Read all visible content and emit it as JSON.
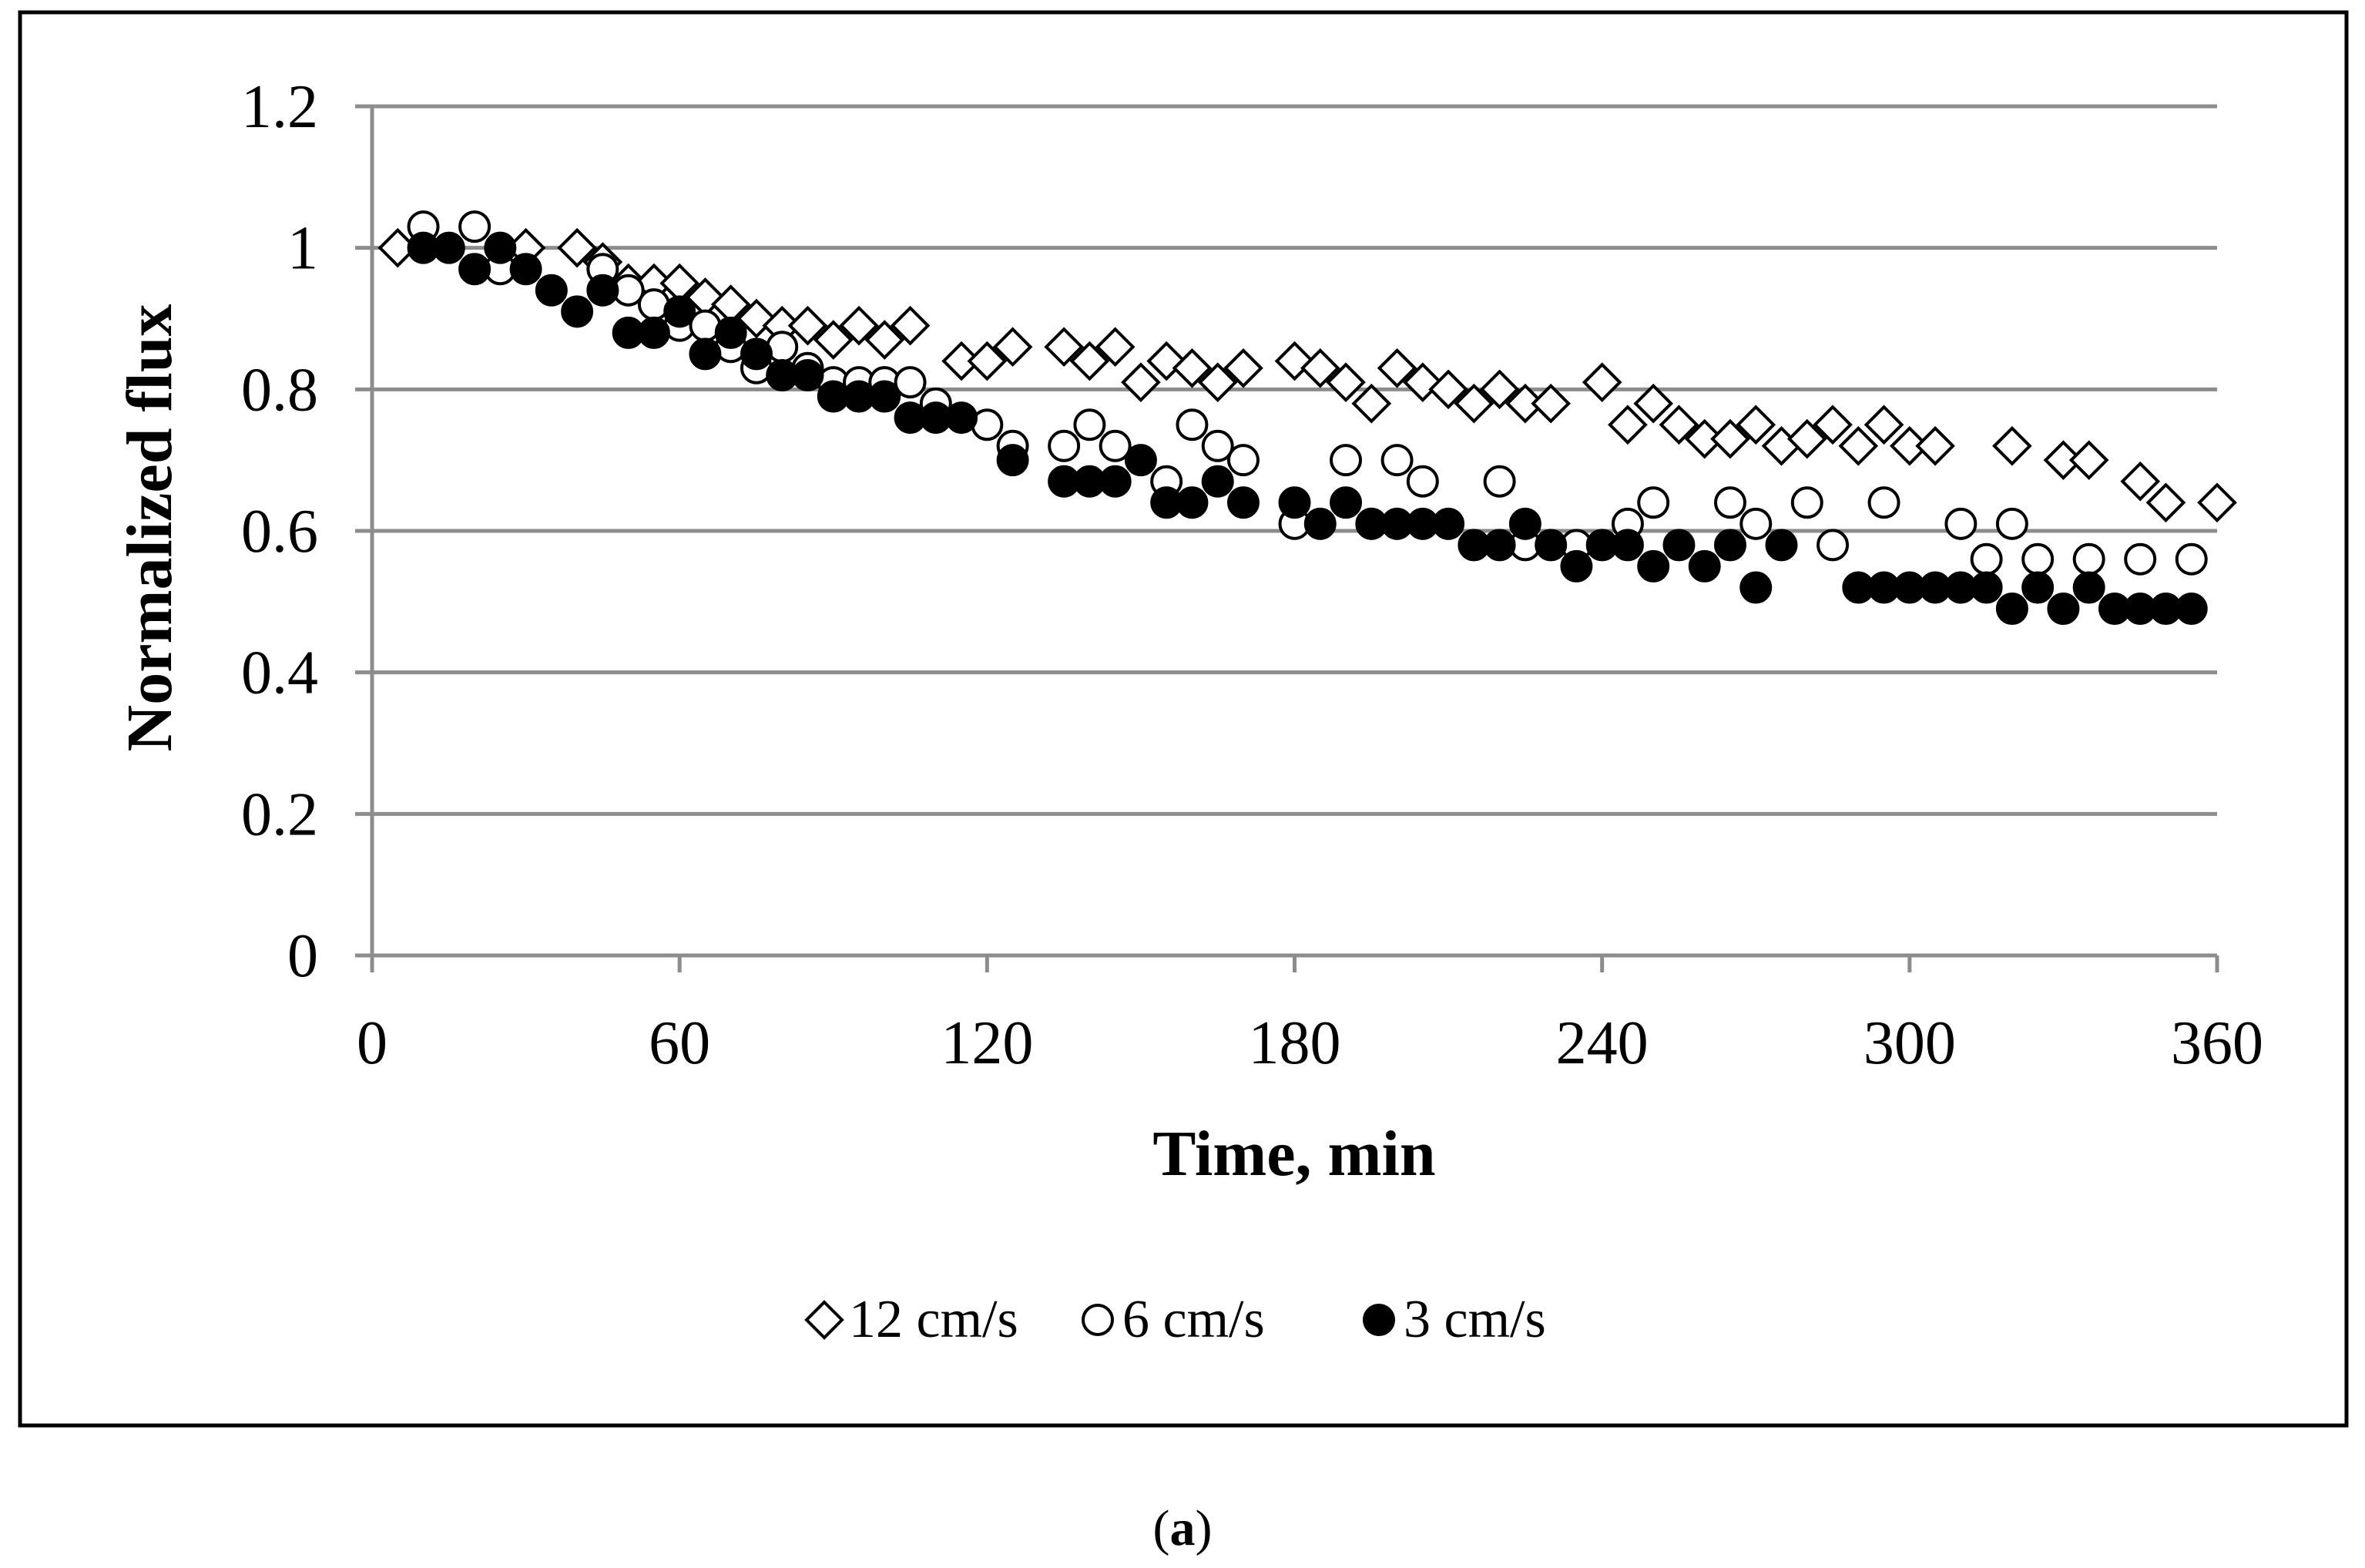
{
  "chart_data": {
    "type": "scatter",
    "title": "",
    "xlabel": "Time, min",
    "ylabel": "Normalized flux",
    "xlim": [
      0,
      360
    ],
    "ylim": [
      0,
      1.2
    ],
    "xticks": [
      "0",
      "60",
      "120",
      "180",
      "240",
      "300",
      "360"
    ],
    "yticks": [
      "0",
      "0.2",
      "0.4",
      "0.6",
      "0.8",
      "1",
      "1.2"
    ],
    "grid": "horizontal",
    "legend_position": "bottom",
    "series": [
      {
        "name": "12 cm/s",
        "marker": "open-diamond",
        "points": [
          [
            5,
            1.0
          ],
          [
            30,
            1.0
          ],
          [
            40,
            1.0
          ],
          [
            45,
            0.98
          ],
          [
            50,
            0.95
          ],
          [
            55,
            0.95
          ],
          [
            60,
            0.95
          ],
          [
            65,
            0.93
          ],
          [
            70,
            0.92
          ],
          [
            75,
            0.9
          ],
          [
            80,
            0.89
          ],
          [
            85,
            0.89
          ],
          [
            90,
            0.87
          ],
          [
            95,
            0.89
          ],
          [
            100,
            0.87
          ],
          [
            105,
            0.89
          ],
          [
            115,
            0.84
          ],
          [
            120,
            0.84
          ],
          [
            125,
            0.86
          ],
          [
            135,
            0.86
          ],
          [
            140,
            0.84
          ],
          [
            145,
            0.86
          ],
          [
            150,
            0.81
          ],
          [
            155,
            0.84
          ],
          [
            160,
            0.83
          ],
          [
            165,
            0.81
          ],
          [
            170,
            0.83
          ],
          [
            180,
            0.84
          ],
          [
            185,
            0.83
          ],
          [
            190,
            0.81
          ],
          [
            195,
            0.78
          ],
          [
            200,
            0.83
          ],
          [
            205,
            0.81
          ],
          [
            210,
            0.8
          ],
          [
            215,
            0.78
          ],
          [
            220,
            0.8
          ],
          [
            225,
            0.78
          ],
          [
            230,
            0.78
          ],
          [
            240,
            0.81
          ],
          [
            245,
            0.75
          ],
          [
            250,
            0.78
          ],
          [
            255,
            0.75
          ],
          [
            260,
            0.73
          ],
          [
            265,
            0.73
          ],
          [
            270,
            0.75
          ],
          [
            275,
            0.72
          ],
          [
            280,
            0.73
          ],
          [
            285,
            0.75
          ],
          [
            290,
            0.72
          ],
          [
            295,
            0.75
          ],
          [
            300,
            0.72
          ],
          [
            305,
            0.72
          ],
          [
            320,
            0.72
          ],
          [
            330,
            0.7
          ],
          [
            335,
            0.7
          ],
          [
            345,
            0.67
          ],
          [
            350,
            0.64
          ],
          [
            360,
            0.64
          ]
        ]
      },
      {
        "name": "6 cm/s",
        "marker": "open-circle",
        "points": [
          [
            10,
            1.03
          ],
          [
            20,
            1.03
          ],
          [
            25,
            0.97
          ],
          [
            45,
            0.97
          ],
          [
            50,
            0.94
          ],
          [
            55,
            0.92
          ],
          [
            60,
            0.89
          ],
          [
            65,
            0.89
          ],
          [
            70,
            0.86
          ],
          [
            75,
            0.83
          ],
          [
            80,
            0.86
          ],
          [
            85,
            0.83
          ],
          [
            90,
            0.81
          ],
          [
            95,
            0.81
          ],
          [
            100,
            0.81
          ],
          [
            105,
            0.81
          ],
          [
            110,
            0.78
          ],
          [
            120,
            0.75
          ],
          [
            125,
            0.72
          ],
          [
            135,
            0.72
          ],
          [
            140,
            0.75
          ],
          [
            145,
            0.72
          ],
          [
            155,
            0.67
          ],
          [
            160,
            0.75
          ],
          [
            165,
            0.72
          ],
          [
            170,
            0.7
          ],
          [
            180,
            0.61
          ],
          [
            190,
            0.7
          ],
          [
            200,
            0.7
          ],
          [
            205,
            0.67
          ],
          [
            220,
            0.67
          ],
          [
            225,
            0.58
          ],
          [
            235,
            0.58
          ],
          [
            245,
            0.61
          ],
          [
            250,
            0.64
          ],
          [
            265,
            0.64
          ],
          [
            270,
            0.61
          ],
          [
            280,
            0.64
          ],
          [
            285,
            0.58
          ],
          [
            295,
            0.64
          ],
          [
            310,
            0.61
          ],
          [
            315,
            0.56
          ],
          [
            320,
            0.61
          ],
          [
            325,
            0.56
          ],
          [
            335,
            0.56
          ],
          [
            345,
            0.56
          ],
          [
            355,
            0.56
          ]
        ]
      },
      {
        "name": "3 cm/s",
        "marker": "filled-circle",
        "points": [
          [
            10,
            1.0
          ],
          [
            15,
            1.0
          ],
          [
            20,
            0.97
          ],
          [
            25,
            1.0
          ],
          [
            30,
            0.97
          ],
          [
            35,
            0.94
          ],
          [
            40,
            0.91
          ],
          [
            45,
            0.94
          ],
          [
            50,
            0.88
          ],
          [
            55,
            0.88
          ],
          [
            60,
            0.91
          ],
          [
            65,
            0.85
          ],
          [
            70,
            0.88
          ],
          [
            75,
            0.85
          ],
          [
            80,
            0.82
          ],
          [
            85,
            0.82
          ],
          [
            90,
            0.79
          ],
          [
            95,
            0.79
          ],
          [
            100,
            0.79
          ],
          [
            105,
            0.76
          ],
          [
            110,
            0.76
          ],
          [
            115,
            0.76
          ],
          [
            125,
            0.7
          ],
          [
            135,
            0.67
          ],
          [
            140,
            0.67
          ],
          [
            145,
            0.67
          ],
          [
            150,
            0.7
          ],
          [
            155,
            0.64
          ],
          [
            160,
            0.64
          ],
          [
            165,
            0.67
          ],
          [
            170,
            0.64
          ],
          [
            180,
            0.64
          ],
          [
            185,
            0.61
          ],
          [
            190,
            0.64
          ],
          [
            195,
            0.61
          ],
          [
            200,
            0.61
          ],
          [
            205,
            0.61
          ],
          [
            210,
            0.61
          ],
          [
            215,
            0.58
          ],
          [
            220,
            0.58
          ],
          [
            225,
            0.61
          ],
          [
            230,
            0.58
          ],
          [
            235,
            0.55
          ],
          [
            240,
            0.58
          ],
          [
            245,
            0.58
          ],
          [
            250,
            0.55
          ],
          [
            255,
            0.58
          ],
          [
            260,
            0.55
          ],
          [
            265,
            0.58
          ],
          [
            270,
            0.52
          ],
          [
            275,
            0.58
          ],
          [
            290,
            0.52
          ],
          [
            295,
            0.52
          ],
          [
            300,
            0.52
          ],
          [
            305,
            0.52
          ],
          [
            310,
            0.52
          ],
          [
            315,
            0.52
          ],
          [
            320,
            0.49
          ],
          [
            325,
            0.52
          ],
          [
            330,
            0.49
          ],
          [
            335,
            0.52
          ],
          [
            340,
            0.49
          ],
          [
            345,
            0.49
          ],
          [
            350,
            0.49
          ],
          [
            355,
            0.49
          ]
        ]
      }
    ]
  },
  "legend": {
    "items": [
      {
        "label": "12 cm/s",
        "marker": "open-diamond"
      },
      {
        "label": "6 cm/s",
        "marker": "open-circle"
      },
      {
        "label": "3 cm/s",
        "marker": "filled-circle"
      }
    ]
  },
  "caption": {
    "open": "(",
    "letter": "a",
    "close": ")"
  },
  "colors": {
    "marker": "#000000",
    "grid": "#8c8c8c",
    "frame": "#000000",
    "background": "#ffffff"
  }
}
